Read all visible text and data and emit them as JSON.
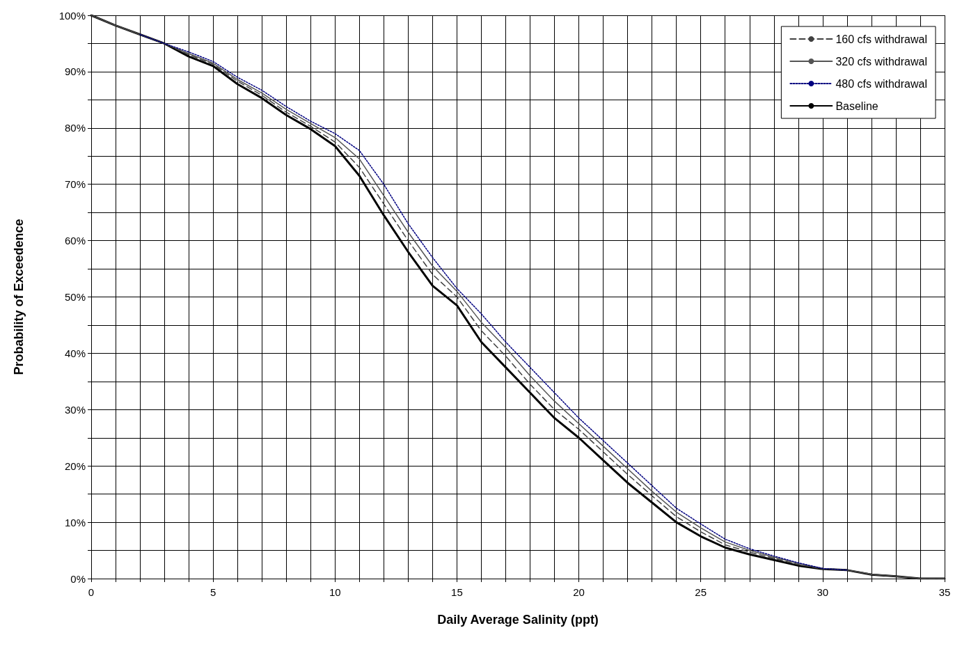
{
  "chart_data": {
    "type": "line",
    "xlabel": "Daily Average Salinity (ppt)",
    "ylabel": "Probability of Exceedence",
    "xlim": [
      0,
      35
    ],
    "ylim": [
      0,
      100
    ],
    "xticks": [
      0,
      {
        "value": 1,
        "label": null
      },
      {
        "value": 2,
        "label": null
      },
      {
        "value": 3,
        "label": null
      },
      {
        "value": 4,
        "label": null
      },
      5,
      {
        "value": 6,
        "label": null
      },
      {
        "value": 7,
        "label": null
      },
      {
        "value": 8,
        "label": null
      },
      {
        "value": 9,
        "label": null
      },
      10,
      {
        "value": 11,
        "label": null
      },
      {
        "value": 12,
        "label": null
      },
      {
        "value": 13,
        "label": null
      },
      {
        "value": 14,
        "label": null
      },
      15,
      {
        "value": 16,
        "label": null
      },
      {
        "value": 17,
        "label": null
      },
      {
        "value": 18,
        "label": null
      },
      {
        "value": 19,
        "label": null
      },
      20,
      {
        "value": 21,
        "label": null
      },
      {
        "value": 22,
        "label": null
      },
      {
        "value": 23,
        "label": null
      },
      {
        "value": 24,
        "label": null
      },
      25,
      {
        "value": 26,
        "label": null
      },
      {
        "value": 27,
        "label": null
      },
      {
        "value": 28,
        "label": null
      },
      {
        "value": 29,
        "label": null
      },
      30,
      {
        "value": 31,
        "label": null
      },
      {
        "value": 32,
        "label": null
      },
      {
        "value": 33,
        "label": null
      },
      {
        "value": 34,
        "label": null
      },
      35
    ],
    "yticks": [
      {
        "value": 0,
        "label": "0%"
      },
      {
        "value": 5,
        "label": null
      },
      {
        "value": 10,
        "label": "10%"
      },
      {
        "value": 15,
        "label": null
      },
      {
        "value": 20,
        "label": "20%"
      },
      {
        "value": 25,
        "label": null
      },
      {
        "value": 30,
        "label": "30%"
      },
      {
        "value": 35,
        "label": null
      },
      {
        "value": 40,
        "label": "40%"
      },
      {
        "value": 45,
        "label": null
      },
      {
        "value": 50,
        "label": "50%"
      },
      {
        "value": 55,
        "label": null
      },
      {
        "value": 60,
        "label": "60%"
      },
      {
        "value": 65,
        "label": null
      },
      {
        "value": 70,
        "label": "70%"
      },
      {
        "value": 75,
        "label": null
      },
      {
        "value": 80,
        "label": "80%"
      },
      {
        "value": 85,
        "label": null
      },
      {
        "value": 90,
        "label": "90%"
      },
      {
        "value": 95,
        "label": null
      },
      {
        "value": 100,
        "label": "100%"
      }
    ],
    "grid": true,
    "legend": "top right",
    "marker": "none",
    "x": [
      0,
      1,
      2,
      3,
      4,
      5,
      6,
      7,
      8,
      9,
      10,
      11,
      12,
      13,
      14,
      15,
      16,
      17,
      18,
      19,
      20,
      21,
      22,
      23,
      24,
      25,
      26,
      27,
      28,
      29,
      30,
      31,
      32,
      33,
      34,
      35
    ],
    "series": [
      {
        "name": "160 cfs withdrawal",
        "color": "#404040",
        "line_style": "dashed",
        "values": [
          100,
          98.2,
          96.6,
          95,
          93,
          91.3,
          88.3,
          85.8,
          82.8,
          80.3,
          77.5,
          73,
          66.5,
          60,
          54,
          50,
          44,
          39.5,
          34.5,
          30,
          26.5,
          22.5,
          18.5,
          14.7,
          11,
          8.3,
          6,
          4.7,
          3.6,
          2.5,
          1.7,
          1.5,
          0.7,
          0.4,
          0,
          0
        ]
      },
      {
        "name": "320 cfs withdrawal",
        "color": "#555555",
        "line_style": "solid",
        "values": [
          100,
          98.2,
          96.6,
          95,
          93.2,
          91.5,
          88.6,
          86.2,
          83.3,
          80.8,
          78.3,
          74.5,
          68,
          61.5,
          55.5,
          51,
          45.5,
          41,
          36,
          31.5,
          27.5,
          23.5,
          19.5,
          15.5,
          11.8,
          9,
          6.5,
          5,
          3.8,
          2.7,
          1.8,
          1.5,
          0.8,
          0.4,
          0,
          0
        ]
      },
      {
        "name": "480 cfs withdrawal",
        "color": "#000080",
        "line_style": "dotted",
        "values": [
          null,
          null,
          96.6,
          95,
          93.5,
          91.8,
          89,
          86.7,
          83.8,
          81.2,
          79,
          76,
          70,
          63,
          57,
          51.5,
          47,
          42,
          37.5,
          33,
          28.5,
          24.5,
          20.5,
          16.5,
          12.5,
          9.7,
          7,
          5.3,
          4,
          2.8,
          1.8,
          1.5,
          null,
          null,
          null,
          null
        ]
      },
      {
        "name": "Baseline",
        "color": "#000000",
        "line_style": "solid",
        "values": [
          100,
          98.2,
          96.6,
          95,
          92.7,
          91,
          87.8,
          85.3,
          82.3,
          79.8,
          76.8,
          71.5,
          64.5,
          58,
          52,
          48.5,
          42,
          37.5,
          33,
          28.5,
          25,
          21,
          17,
          13.5,
          10,
          7.5,
          5.5,
          4.3,
          3.3,
          2.3,
          1.7,
          1.5,
          0.7,
          0.4,
          0,
          0
        ]
      }
    ]
  }
}
